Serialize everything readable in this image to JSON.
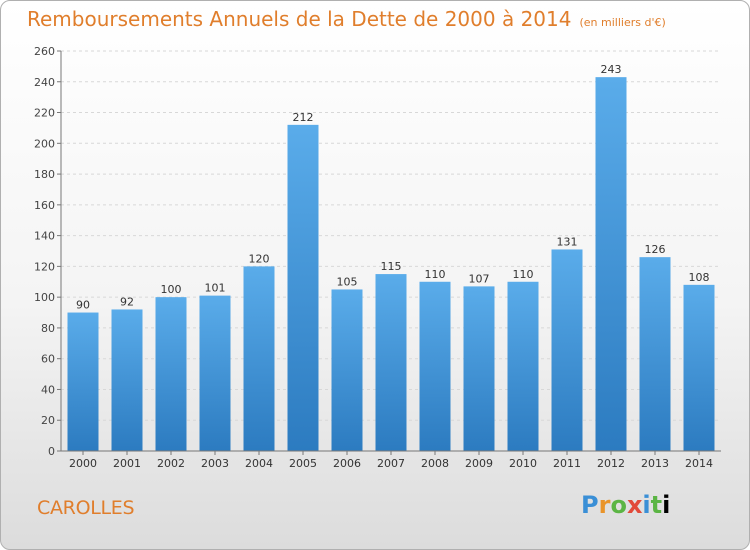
{
  "title": "Remboursements Annuels de la Dette de 2000 à 2014",
  "subtitle": "(en milliers d'€)",
  "commune": "CAROLLES",
  "logo": [
    "P",
    "r",
    "o",
    "x",
    "i",
    "t",
    "i"
  ],
  "colors": {
    "bar": "#4a9fe0",
    "bar_dark": "#2e7dc2",
    "text_accent": "#e07e2c",
    "axis": "#777777",
    "grid": "#d8d8d8"
  },
  "chart_data": {
    "type": "bar",
    "title": "Remboursements Annuels de la Dette de 2000 à 2014",
    "categories": [
      "2000",
      "2001",
      "2002",
      "2003",
      "2004",
      "2005",
      "2006",
      "2007",
      "2008",
      "2009",
      "2010",
      "2011",
      "2012",
      "2013",
      "2014"
    ],
    "values": [
      90,
      92,
      100,
      101,
      120,
      212,
      105,
      115,
      110,
      107,
      110,
      131,
      243,
      126,
      108
    ],
    "ylim": [
      0,
      260
    ],
    "yticks": [
      0,
      20,
      40,
      60,
      80,
      100,
      120,
      140,
      160,
      180,
      200,
      220,
      240,
      260
    ],
    "grid": true,
    "legend": "none"
  }
}
